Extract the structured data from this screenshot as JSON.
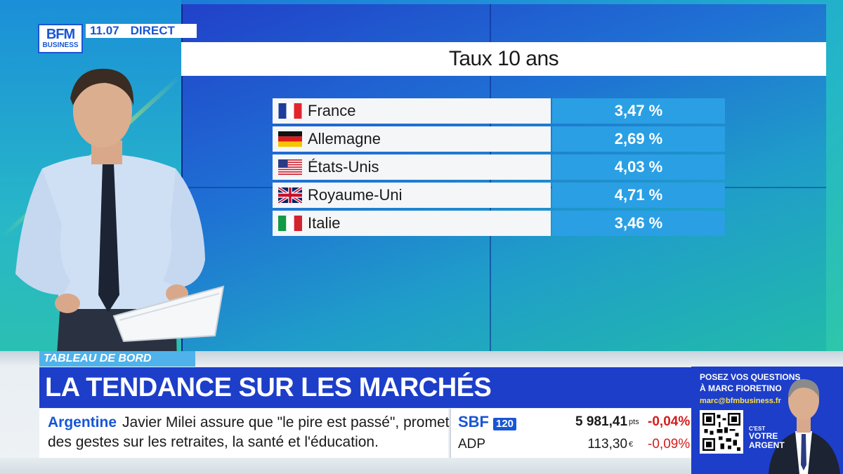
{
  "broadcast": {
    "logo_main": "BFM",
    "logo_sub": "BUSINESS",
    "time": "11.07",
    "live_label": "DIRECT"
  },
  "screen": {
    "title": "Taux 10 ans",
    "rows": [
      {
        "country": "France",
        "flag": "france-flag-icon",
        "rate": "3,47 %"
      },
      {
        "country": "Allemagne",
        "flag": "germany-flag-icon",
        "rate": "2,69 %"
      },
      {
        "country": "États-Unis",
        "flag": "usa-flag-icon",
        "rate": "4,03 %"
      },
      {
        "country": "Royaume-Uni",
        "flag": "uk-flag-icon",
        "rate": "4,71 %"
      },
      {
        "country": "Italie",
        "flag": "italy-flag-icon",
        "rate": "3,46 %"
      }
    ]
  },
  "lower_third": {
    "section": "TABLEAU DE BORD",
    "headline": "LA TENDANCE SUR LES MARCHÉS"
  },
  "news": {
    "keyword": "Argentine",
    "line1": "Javier Milei assure que \"le pire est passé\", promet",
    "line2": "des gestes sur les retraites, la santé et l'éducation."
  },
  "market": {
    "index_name": "SBF",
    "index_badge": "120",
    "index_value": "5 981,41",
    "index_unit": "pts",
    "index_change": "-0,04%",
    "stock_name": "ADP",
    "stock_value": "113,30",
    "stock_unit": "€",
    "stock_change": "-0,09%"
  },
  "promo": {
    "line1": "POSEZ VOS QUESTIONS",
    "line2": "À MARC FIORETINO",
    "email": "marc@bfmbusiness.fr",
    "show_small": "C'EST",
    "show_line1": "VOTRE",
    "show_line2": "ARGENT"
  },
  "colors": {
    "brand_blue": "#1d3ec9",
    "accent_light_blue": "#4fb2ea",
    "value_cell_blue": "#2a9fe4",
    "negative_red": "#d41c1c"
  }
}
